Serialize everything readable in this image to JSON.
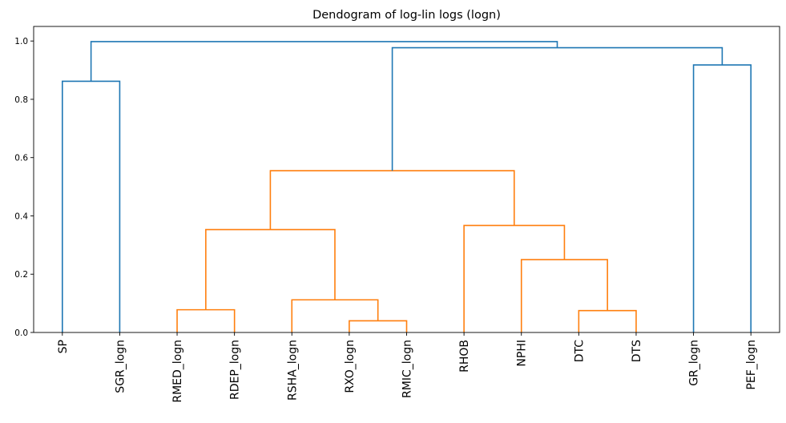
{
  "chart_data": {
    "type": "dendrogram",
    "title": "Dendogram of log-lin logs (logn)",
    "xlabel": "",
    "ylabel": "",
    "ylim": [
      0,
      1.05
    ],
    "yticks": [
      "0.0",
      "0.2",
      "0.4",
      "0.6",
      "0.8",
      "1.0"
    ],
    "leaves": [
      "SP",
      "SGR_logn",
      "RMED_logn",
      "RDEP_logn",
      "RSHA_logn",
      "RXO_logn",
      "RMIC_logn",
      "RHOB",
      "NPHI",
      "DTC",
      "DTS",
      "GR_logn",
      "PEF_logn"
    ],
    "colors": {
      "above_threshold": "#1f77b4",
      "cluster": "#ff7f0e"
    },
    "links": [
      {
        "left": 0,
        "right": 1,
        "height": 0.862,
        "color": "#1f77b4"
      },
      {
        "left": 5,
        "right": 6,
        "height": 0.04,
        "color": "#ff7f0e"
      },
      {
        "left": 4,
        "right": "n2",
        "height": 0.112,
        "color": "#ff7f0e"
      },
      {
        "left": 2,
        "right": 3,
        "height": 0.078,
        "color": "#ff7f0e"
      },
      {
        "left": "n4",
        "right": "n3",
        "height": 0.353,
        "color": "#ff7f0e"
      },
      {
        "left": 9,
        "right": 10,
        "height": 0.075,
        "color": "#ff7f0e"
      },
      {
        "left": 8,
        "right": "n6",
        "height": 0.25,
        "color": "#ff7f0e"
      },
      {
        "left": 7,
        "right": "n7",
        "height": 0.367,
        "color": "#ff7f0e"
      },
      {
        "left": "n5",
        "right": "n8",
        "height": 0.555,
        "color": "#ff7f0e"
      },
      {
        "left": 11,
        "right": 12,
        "height": 0.918,
        "color": "#1f77b4"
      },
      {
        "left": "n9",
        "right": "n10",
        "height": 0.977,
        "color": "#1f77b4"
      },
      {
        "left": "n1",
        "right": "n11",
        "height": 0.998,
        "color": "#1f77b4"
      }
    ]
  }
}
